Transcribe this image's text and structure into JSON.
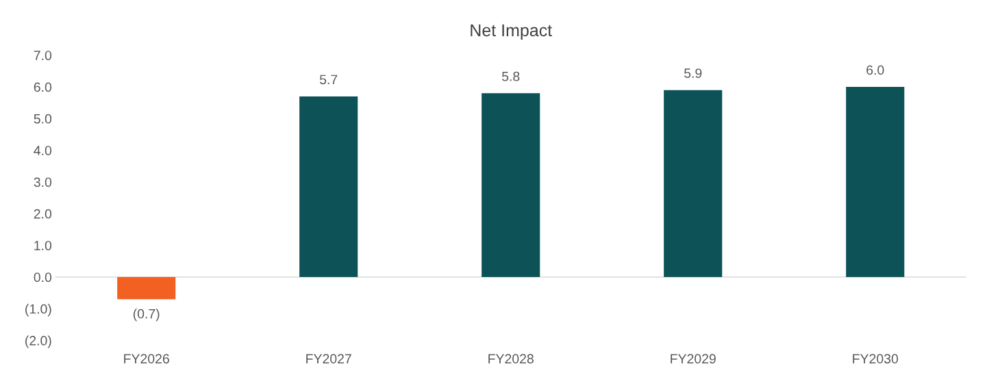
{
  "chart_data": {
    "type": "bar",
    "title": "Net Impact",
    "categories": [
      "FY2026",
      "FY2027",
      "FY2028",
      "FY2029",
      "FY2030"
    ],
    "values": [
      -0.7,
      5.7,
      5.8,
      5.9,
      6.0
    ],
    "colors": [
      "#f26122",
      "#0d5257",
      "#0d5257",
      "#0d5257",
      "#0d5257"
    ],
    "value_labels": [
      "(0.7)",
      "5.7",
      "5.8",
      "5.9",
      "6.0"
    ],
    "ylim": [
      -2,
      7
    ],
    "yticks": [
      {
        "value": -2,
        "label": "(2.0)"
      },
      {
        "value": -1,
        "label": "(1.0)"
      },
      {
        "value": 0,
        "label": "0.0"
      },
      {
        "value": 1,
        "label": "1.0"
      },
      {
        "value": 2,
        "label": "2.0"
      },
      {
        "value": 3,
        "label": "3.0"
      },
      {
        "value": 4,
        "label": "4.0"
      },
      {
        "value": 5,
        "label": "5.0"
      },
      {
        "value": 6,
        "label": "6.0"
      },
      {
        "value": 7,
        "label": "7.0"
      }
    ],
    "ref_lines": [
      {
        "axis": "y",
        "value": 0,
        "color": "#d9d9d9"
      }
    ]
  }
}
